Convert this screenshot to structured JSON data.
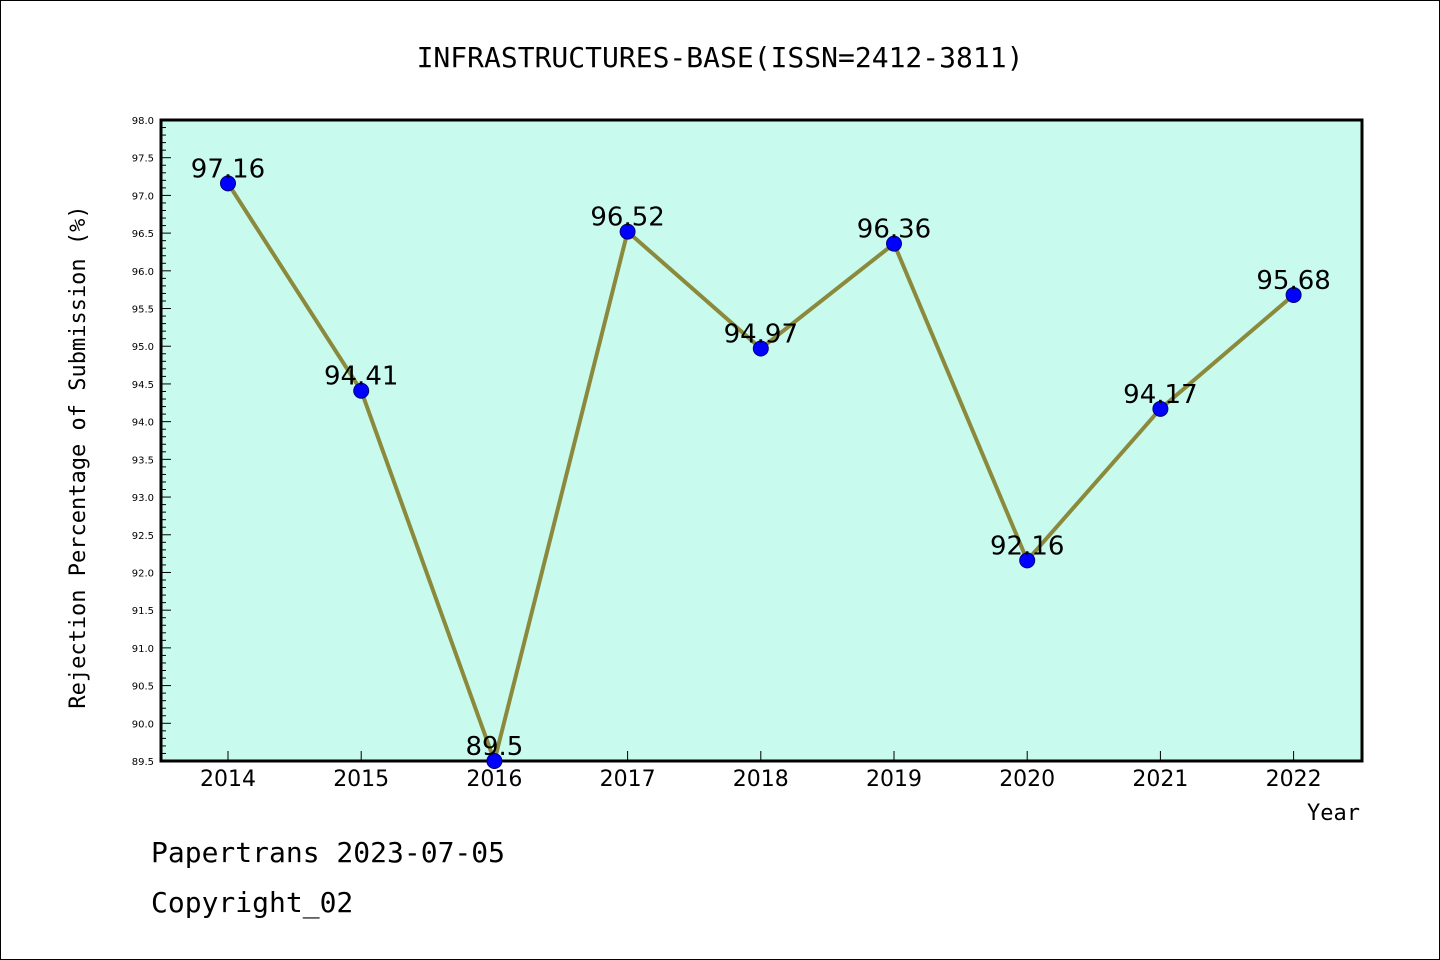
{
  "chart_data": {
    "type": "line",
    "title": "INFRASTRUCTURES-BASE(ISSN=2412-3811)",
    "xlabel": "Year",
    "ylabel": "Rejection Percentage of Submission (%)",
    "categories": [
      "2014",
      "2015",
      "2016",
      "2017",
      "2018",
      "2019",
      "2020",
      "2021",
      "2022"
    ],
    "values": [
      97.16,
      94.41,
      89.5,
      96.52,
      94.97,
      96.36,
      92.16,
      94.17,
      95.68
    ],
    "data_labels": [
      "97.16",
      "94.41",
      "89.5",
      "96.52",
      "94.97",
      "96.36",
      "92.16",
      "94.17",
      "95.68"
    ],
    "ylim": [
      89.5,
      98.0
    ],
    "ytick_labels": [
      "89.5",
      "90.0",
      "90.5",
      "91.0",
      "91.5",
      "92.0",
      "92.5",
      "93.0",
      "93.5",
      "94.0",
      "94.5",
      "95.0",
      "95.5",
      "96.0",
      "96.5",
      "97.0",
      "97.5",
      "98.0"
    ],
    "grid": false,
    "legend": "none",
    "colors": {
      "plot_background": "#c8fbee",
      "line": "#8b8a3c",
      "marker": "#0000ff",
      "marker_edge": "#000080"
    }
  },
  "footer": {
    "line1": "Papertrans 2023-07-05",
    "line2": "Copyright_02"
  }
}
